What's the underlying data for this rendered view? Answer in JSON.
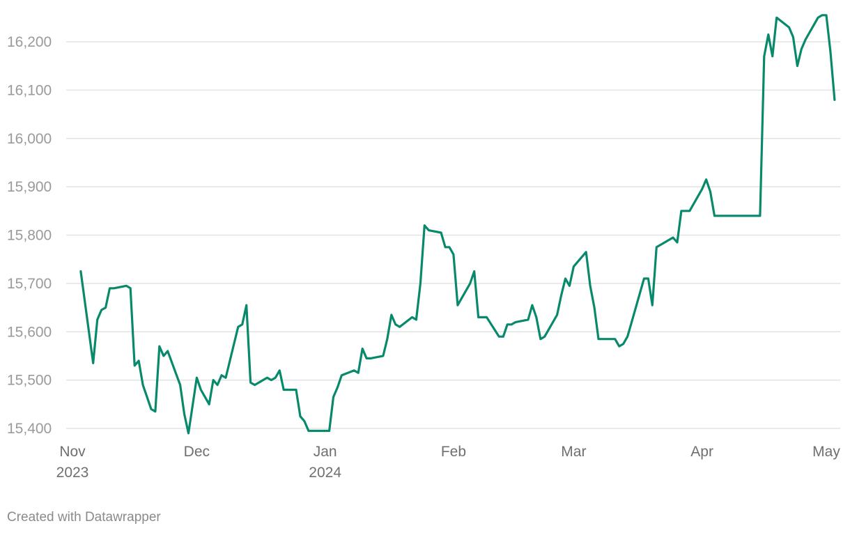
{
  "chart_data": {
    "type": "line",
    "title": "",
    "xlabel": "",
    "ylabel": "",
    "ylim": [
      15400,
      16200
    ],
    "yticks": [
      15400,
      15500,
      15600,
      15700,
      15800,
      15900,
      16000,
      16100,
      16200
    ],
    "ytick_labels": [
      "15,400",
      "15,500",
      "15,600",
      "15,700",
      "15,800",
      "15,900",
      "16,000",
      "16,100",
      "16,200"
    ],
    "xticks": [
      {
        "date": "2023-11-01",
        "label": "Nov",
        "label2": "2023"
      },
      {
        "date": "2023-12-01",
        "label": "Dec",
        "label2": ""
      },
      {
        "date": "2024-01-01",
        "label": "Jan",
        "label2": "2024"
      },
      {
        "date": "2024-02-01",
        "label": "Feb",
        "label2": ""
      },
      {
        "date": "2024-03-01",
        "label": "Mar",
        "label2": ""
      },
      {
        "date": "2024-04-01",
        "label": "Apr",
        "label2": ""
      },
      {
        "date": "2024-05-01",
        "label": "May",
        "label2": ""
      }
    ],
    "grid": true,
    "line_color": "#08896b",
    "series": [
      {
        "x": [
          "2023-11-03",
          "2023-11-06",
          "2023-11-07",
          "2023-11-08",
          "2023-11-09",
          "2023-11-10",
          "2023-11-11",
          "2023-11-14",
          "2023-11-15",
          "2023-11-16",
          "2023-11-17",
          "2023-11-18",
          "2023-11-20",
          "2023-11-21",
          "2023-11-22",
          "2023-11-23",
          "2023-11-24",
          "2023-11-27",
          "2023-11-28",
          "2023-11-29",
          "2023-12-01",
          "2023-12-02",
          "2023-12-04",
          "2023-12-05",
          "2023-12-06",
          "2023-12-07",
          "2023-12-08",
          "2023-12-11",
          "2023-12-12",
          "2023-12-13",
          "2023-12-14",
          "2023-12-15",
          "2023-12-18",
          "2023-12-19",
          "2023-12-20",
          "2023-12-21",
          "2023-12-22",
          "2023-12-25",
          "2023-12-26",
          "2023-12-27",
          "2023-12-28",
          "2024-01-02",
          "2024-01-03",
          "2024-01-04",
          "2024-01-05",
          "2024-01-08",
          "2024-01-09",
          "2024-01-10",
          "2024-01-11",
          "2024-01-12",
          "2024-01-15",
          "2024-01-16",
          "2024-01-17",
          "2024-01-18",
          "2024-01-19",
          "2024-01-22",
          "2024-01-23",
          "2024-01-24",
          "2024-01-25",
          "2024-01-26",
          "2024-01-29",
          "2024-01-30",
          "2024-01-31",
          "2024-02-01",
          "2024-02-02",
          "2024-02-05",
          "2024-02-06",
          "2024-02-07",
          "2024-02-08",
          "2024-02-09",
          "2024-02-12",
          "2024-02-13",
          "2024-02-14",
          "2024-02-15",
          "2024-02-16",
          "2024-02-19",
          "2024-02-20",
          "2024-02-21",
          "2024-02-22",
          "2024-02-23",
          "2024-02-26",
          "2024-02-27",
          "2024-02-28",
          "2024-02-29",
          "2024-03-01",
          "2024-03-04",
          "2024-03-05",
          "2024-03-06",
          "2024-03-07",
          "2024-03-08",
          "2024-03-11",
          "2024-03-12",
          "2024-03-13",
          "2024-03-14",
          "2024-03-15",
          "2024-03-18",
          "2024-03-19",
          "2024-03-20",
          "2024-03-21",
          "2024-03-22",
          "2024-03-25",
          "2024-03-26",
          "2024-03-27",
          "2024-03-28",
          "2024-03-29",
          "2024-04-01",
          "2024-04-02",
          "2024-04-03",
          "2024-04-04",
          "2024-04-15",
          "2024-04-16",
          "2024-04-17",
          "2024-04-18",
          "2024-04-19",
          "2024-04-22",
          "2024-04-23",
          "2024-04-24",
          "2024-04-25",
          "2024-04-26",
          "2024-04-29",
          "2024-04-30",
          "2024-05-01",
          "2024-05-02",
          "2024-05-03"
        ],
        "values": [
          15725,
          15535,
          15625,
          15645,
          15650,
          15690,
          15690,
          15695,
          15690,
          15530,
          15540,
          15490,
          15440,
          15435,
          15570,
          15550,
          15560,
          15490,
          15430,
          15390,
          15505,
          15480,
          15450,
          15500,
          15490,
          15510,
          15505,
          15610,
          15615,
          15655,
          15495,
          15490,
          15505,
          15500,
          15505,
          15520,
          15480,
          15480,
          15425,
          15415,
          15395,
          15395,
          15465,
          15485,
          15510,
          15520,
          15515,
          15565,
          15545,
          15545,
          15550,
          15585,
          15635,
          15615,
          15610,
          15630,
          15625,
          15700,
          15820,
          15810,
          15805,
          15775,
          15775,
          15760,
          15655,
          15700,
          15725,
          15630,
          15630,
          15630,
          15590,
          15590,
          15615,
          15615,
          15620,
          15625,
          15655,
          15630,
          15585,
          15590,
          15635,
          15675,
          15710,
          15695,
          15735,
          15765,
          15695,
          15650,
          15585,
          15585,
          15585,
          15570,
          15575,
          15590,
          15620,
          15710,
          15710,
          15655,
          15775,
          15780,
          15795,
          15785,
          15850,
          15850,
          15850,
          15895,
          15915,
          15890,
          15840,
          15840,
          16170,
          16215,
          16170,
          16250,
          16230,
          16210,
          16150,
          16185,
          16205,
          16250,
          16255,
          16255,
          16180,
          16080
        ]
      }
    ]
  },
  "credit": "Created with Datawrapper"
}
